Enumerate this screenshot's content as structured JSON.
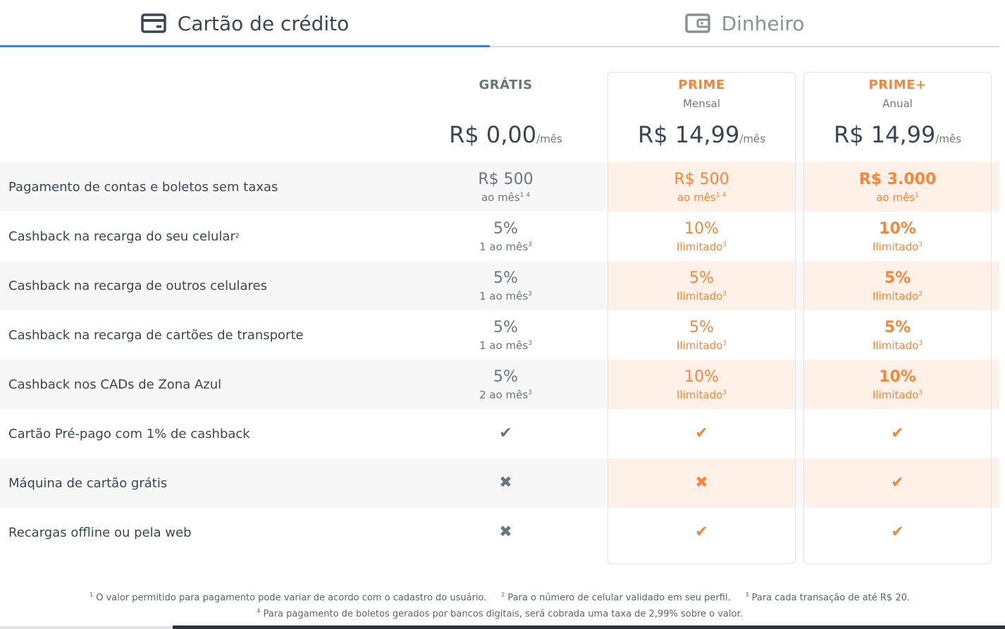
{
  "tabs": {
    "card": {
      "label": "Cartão de crédito",
      "icon": "credit-card-icon"
    },
    "cash": {
      "label": "Dinheiro",
      "icon": "wallet-icon"
    }
  },
  "plans": {
    "free": {
      "name": "GRÁTIS",
      "period": "",
      "price": "R$ 0,00",
      "per": "/mês"
    },
    "prime": {
      "name": "PRIME",
      "period": "Mensal",
      "price": "R$ 14,99",
      "per": "/mês"
    },
    "primeplus": {
      "name": "PRIME+",
      "period": "Anual",
      "price": "R$ 14,99",
      "per": "/mês"
    }
  },
  "rows": [
    {
      "label": "Pagamento de contas e boletos sem taxas",
      "label_sup": "",
      "free": {
        "v": "R$ 500",
        "s": "ao mês",
        "sup": "1 4"
      },
      "prime": {
        "v": "R$ 500",
        "s": "ao mês",
        "sup": "1 4"
      },
      "primeplus": {
        "v": "R$ 3.000",
        "s": "ao mês",
        "sup": "1"
      }
    },
    {
      "label": "Cashback na recarga do seu celular",
      "label_sup": "2",
      "free": {
        "v": "5%",
        "s": "1 ao mês",
        "sup": "3"
      },
      "prime": {
        "v": "10%",
        "s": "Ilimitado",
        "sup": "3"
      },
      "primeplus": {
        "v": "10%",
        "s": "Ilimitado",
        "sup": "3"
      }
    },
    {
      "label": "Cashback na recarga de outros celulares",
      "label_sup": "",
      "free": {
        "v": "5%",
        "s": "1 ao mês",
        "sup": "3"
      },
      "prime": {
        "v": "5%",
        "s": "Ilimitado",
        "sup": "3"
      },
      "primeplus": {
        "v": "5%",
        "s": "Ilimitado",
        "sup": "3"
      }
    },
    {
      "label": "Cashback na recarga de cartões de transporte",
      "label_sup": "",
      "free": {
        "v": "5%",
        "s": "1 ao mês",
        "sup": "3"
      },
      "prime": {
        "v": "5%",
        "s": "Ilimitado",
        "sup": "3"
      },
      "primeplus": {
        "v": "5%",
        "s": "Ilimitado",
        "sup": "3"
      }
    },
    {
      "label": "Cashback nos CADs de Zona Azul",
      "label_sup": "",
      "free": {
        "v": "5%",
        "s": "2 ao mês",
        "sup": "3"
      },
      "prime": {
        "v": "10%",
        "s": "Ilimitado",
        "sup": "3"
      },
      "primeplus": {
        "v": "10%",
        "s": "Ilimitado",
        "sup": "3"
      }
    },
    {
      "label": "Cartão Pré-pago com 1% de cashback",
      "label_sup": "",
      "free": {
        "mark": "check"
      },
      "prime": {
        "mark": "check"
      },
      "primeplus": {
        "mark": "check"
      }
    },
    {
      "label": "Máquina de cartão grátis",
      "label_sup": "",
      "free": {
        "mark": "cross"
      },
      "prime": {
        "mark": "cross"
      },
      "primeplus": {
        "mark": "check"
      }
    },
    {
      "label": "Recargas offline ou pela web",
      "label_sup": "",
      "free": {
        "mark": "cross"
      },
      "prime": {
        "mark": "check"
      },
      "primeplus": {
        "mark": "check"
      }
    }
  ],
  "footnotes": {
    "n1": {
      "num": "1",
      "text": "O valor permitido para pagamento pode variar de acordo com o cadastro do usuário."
    },
    "n2": {
      "num": "2",
      "text": "Para o número de celular validado em seu perfil."
    },
    "n3": {
      "num": "3",
      "text": "Para cada transação de até R$ 20."
    },
    "n4": {
      "num": "4",
      "text": "Para pagamento de boletos gerados por bancos digitais, será cobrada uma taxa de 2,99% sobre o valor."
    }
  },
  "colors": {
    "accent": "#f5863a",
    "tab_active": "#4a7fbf",
    "text": "#3a4654"
  }
}
